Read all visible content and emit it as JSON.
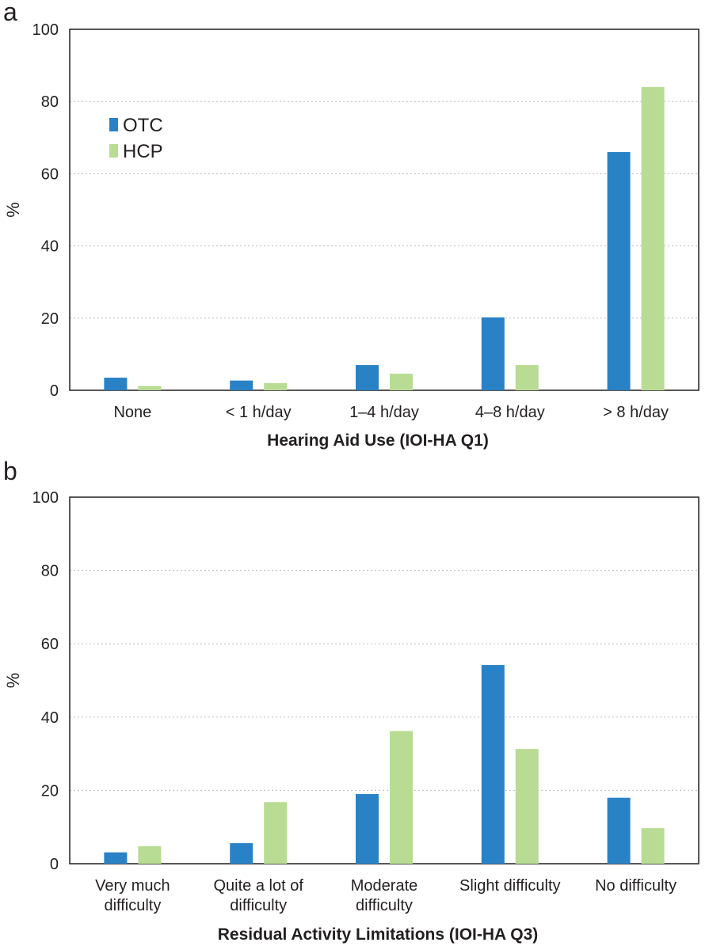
{
  "colors": {
    "OTC": "#2a82c6",
    "HCP": "#b9dc94",
    "axis": "#231f20",
    "grid": "#bdbdbd"
  },
  "chart_data": [
    {
      "panel": "a",
      "type": "bar",
      "title": "",
      "xlabel": "Hearing Aid Use (IOI-HA Q1)",
      "ylabel": "%",
      "ylim": [
        0,
        100
      ],
      "yticks": [
        0,
        20,
        40,
        60,
        80,
        100
      ],
      "grid": true,
      "legend": {
        "placement": "top-left",
        "entries": [
          "OTC",
          "HCP"
        ]
      },
      "categories": [
        [
          "None"
        ],
        [
          "< 1 h/day"
        ],
        [
          "1–4 h/day"
        ],
        [
          "4–8 h/day"
        ],
        [
          "> 8 h/day"
        ]
      ],
      "series": [
        {
          "name": "OTC",
          "values": [
            3.5,
            2.7,
            7.0,
            20.2,
            66.0
          ]
        },
        {
          "name": "HCP",
          "values": [
            1.2,
            2.0,
            4.6,
            7.0,
            84.0
          ]
        }
      ]
    },
    {
      "panel": "b",
      "type": "bar",
      "title": "",
      "xlabel": "Residual Activity Limitations (IOI-HA Q3)",
      "ylabel": "%",
      "ylim": [
        0,
        100
      ],
      "yticks": [
        0,
        20,
        40,
        60,
        80,
        100
      ],
      "grid": true,
      "legend": null,
      "categories": [
        [
          "Very much",
          "difficulty"
        ],
        [
          "Quite a lot of",
          "difficulty"
        ],
        [
          "Moderate",
          "difficulty"
        ],
        [
          "Slight difficulty"
        ],
        [
          "No difficulty"
        ]
      ],
      "series": [
        {
          "name": "OTC",
          "values": [
            3.1,
            5.6,
            19.0,
            54.2,
            18.0
          ]
        },
        {
          "name": "HCP",
          "values": [
            4.8,
            16.8,
            36.2,
            31.3,
            9.7
          ]
        }
      ]
    }
  ]
}
